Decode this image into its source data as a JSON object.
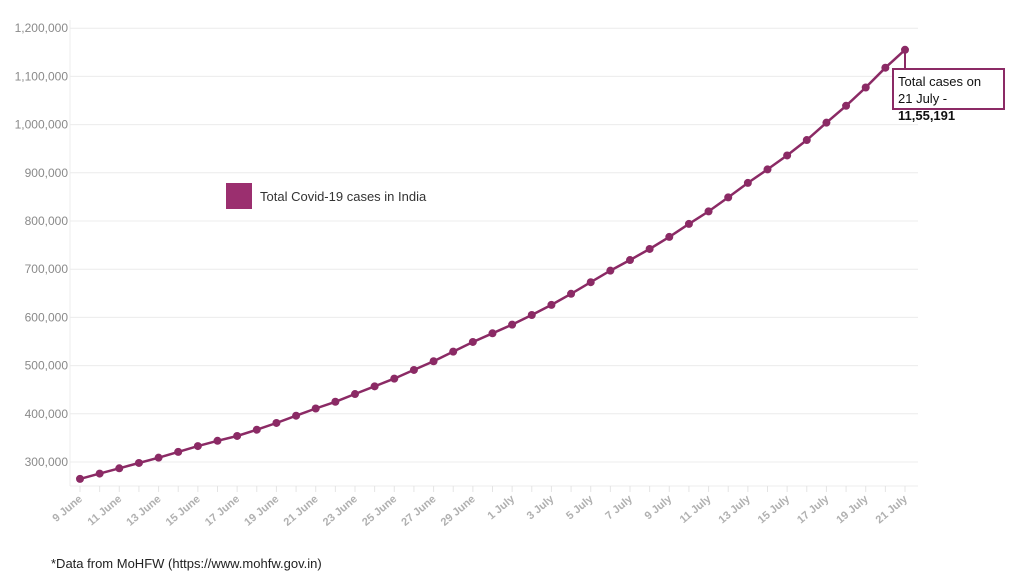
{
  "chart_data": {
    "type": "line",
    "title": "",
    "xlabel": "",
    "ylabel": "",
    "ylim": [
      250000,
      1200000
    ],
    "grid": true,
    "legend_position": "upper-left-inside",
    "y_ticks": [
      "1,200,000",
      "1,100,000",
      "1,000,000",
      "900,000",
      "800,000",
      "700,000",
      "600,000",
      "500,000",
      "400,000",
      "300,000"
    ],
    "y_tick_values": [
      1200000,
      1100000,
      1000000,
      900000,
      800000,
      700000,
      600000,
      500000,
      400000,
      300000
    ],
    "x_tick_labels": [
      "9 June",
      "11 June",
      "13 June",
      "15 June",
      "17 June",
      "19 June",
      "21 June",
      "23 June",
      "25 June",
      "27 June",
      "29 June",
      "1 July",
      "3 July",
      "5 July",
      "7 July",
      "9 July",
      "11 July",
      "13 July",
      "15 July",
      "17 July",
      "19 July",
      "21 July"
    ],
    "categories": [
      "9 June",
      "10 June",
      "11 June",
      "12 June",
      "13 June",
      "14 June",
      "15 June",
      "16 June",
      "17 June",
      "18 June",
      "19 June",
      "20 June",
      "21 June",
      "22 June",
      "23 June",
      "24 June",
      "25 June",
      "26 June",
      "27 June",
      "28 June",
      "29 June",
      "30 June",
      "1 July",
      "2 July",
      "3 July",
      "4 July",
      "5 July",
      "6 July",
      "7 July",
      "8 July",
      "9 July",
      "10 July",
      "11 July",
      "12 July",
      "13 July",
      "14 July",
      "15 July",
      "16 July",
      "17 July",
      "18 July",
      "19 July",
      "20 July",
      "21 July"
    ],
    "series": [
      {
        "name": "Total Covid-19 cases in India",
        "color": "#8b2a65",
        "values": [
          265000,
          276000,
          287000,
          298000,
          309000,
          321000,
          333000,
          344000,
          354000,
          367000,
          381000,
          396000,
          411000,
          425000,
          441000,
          457000,
          473000,
          491000,
          509000,
          529000,
          549000,
          567000,
          585000,
          605000,
          626000,
          649000,
          673000,
          697000,
          719000,
          742000,
          767000,
          794000,
          820000,
          849000,
          879000,
          907000,
          936000,
          968000,
          1004000,
          1039000,
          1077000,
          1118000,
          1155191
        ]
      }
    ],
    "annotations": [
      {
        "target": "21 July",
        "text_line1": "Total cases on",
        "text_line2_prefix": "21 July - ",
        "text_line2_value": "11,55,191"
      }
    ]
  },
  "legend": {
    "label": "Total Covid-19 cases in India",
    "swatch_color": "#9b2f6f"
  },
  "annotation": {
    "line1": "Total cases on",
    "line2_prefix": "21 July - ",
    "line2_value": "11,55,191"
  },
  "footnote": "*Data from MoHFW (https://www.mohfw.gov.in)"
}
